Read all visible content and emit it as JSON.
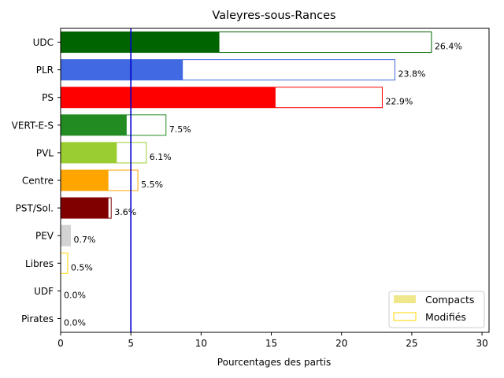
{
  "chart_data": {
    "type": "bar",
    "orientation": "horizontal",
    "title": "Valeyres-sous-Rances",
    "xlabel": "Pourcentages des partis",
    "ylabel": "",
    "xlim": [
      0,
      30.5
    ],
    "xticks": [
      0,
      5,
      10,
      15,
      20,
      25,
      30
    ],
    "threshold_line": {
      "value": 5,
      "color": "#0000cd"
    },
    "categories": [
      "UDC",
      "PLR",
      "PS",
      "VERT-E-S",
      "PVL",
      "Centre",
      "PST/Sol.",
      "PEV",
      "Libres",
      "UDF",
      "Pirates"
    ],
    "colors": [
      "#006400",
      "#4169e1",
      "#ff0000",
      "#228b22",
      "#9acd32",
      "#ffa500",
      "#800000",
      "#d3d3d3",
      "#ffd700",
      "#ffd700",
      "#ffd700"
    ],
    "series": [
      {
        "name": "Compacts",
        "values": [
          11.3,
          8.7,
          15.3,
          4.7,
          4.0,
          3.4,
          3.4,
          0.7,
          0.0,
          0.0,
          0.0
        ]
      },
      {
        "name": "Modifiés",
        "values": [
          26.4,
          23.8,
          22.9,
          7.5,
          6.1,
          5.5,
          3.6,
          0.7,
          0.5,
          0.0,
          0.0
        ]
      }
    ],
    "value_labels": [
      "26.4%",
      "23.8%",
      "22.9%",
      "7.5%",
      "6.1%",
      "5.5%",
      "3.6%",
      "0.7%",
      "0.5%",
      "0.0%",
      "0.0%"
    ],
    "legend": {
      "placement": "lower-right",
      "entries": [
        {
          "label": "Compacts",
          "color": "#f0e68c",
          "style": "filled"
        },
        {
          "label": "Modifiés",
          "color": "#ffd700",
          "style": "outline"
        }
      ]
    },
    "grid": false
  }
}
